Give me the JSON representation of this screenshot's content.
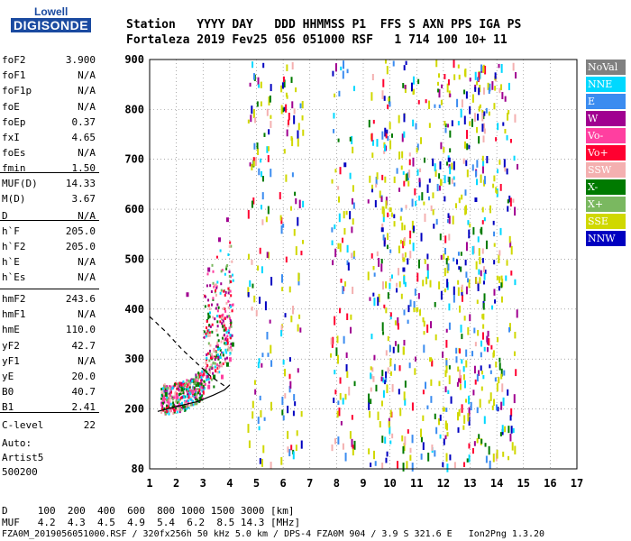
{
  "logo": {
    "line1": "Lowell",
    "line2": "DIGISONDE"
  },
  "header": {
    "row1": "Station   YYYY DAY   DDD HHMMSS P1  FFS S AXN PPS IGA PS",
    "row2": "Fortaleza 2019 Fev25 056 051000 RSF   1 714 100 10+ 11"
  },
  "params": [
    {
      "k": "foF2",
      "v": "3.900"
    },
    {
      "k": "foF1",
      "v": "N/A"
    },
    {
      "k": "foF1p",
      "v": "N/A"
    },
    {
      "k": "foE",
      "v": "N/A"
    },
    {
      "k": "foEp",
      "v": "0.37"
    },
    {
      "k": "fxI",
      "v": "4.65"
    },
    {
      "k": "foEs",
      "v": "N/A"
    },
    {
      "k": "fmin",
      "v": "1.50"
    },
    {
      "k": "MUF(D)",
      "v": "14.33"
    },
    {
      "k": "M(D)",
      "v": "3.67"
    },
    {
      "k": "D",
      "v": "N/A"
    },
    {
      "k": "h`F",
      "v": "205.0"
    },
    {
      "k": "h`F2",
      "v": "205.0"
    },
    {
      "k": "h`E",
      "v": "N/A"
    },
    {
      "k": "h`Es",
      "v": "N/A"
    },
    {
      "k": "hmF2",
      "v": "243.6"
    },
    {
      "k": "hmF1",
      "v": "N/A"
    },
    {
      "k": "hmE",
      "v": "110.0"
    },
    {
      "k": "yF2",
      "v": "42.7"
    },
    {
      "k": "yF1",
      "v": "N/A"
    },
    {
      "k": "yE",
      "v": "20.0"
    },
    {
      "k": "B0",
      "v": "40.7"
    },
    {
      "k": "B1",
      "v": "2.41"
    },
    {
      "k": "C-level",
      "v": "22"
    }
  ],
  "notes": [
    "Auto:",
    "Artist5",
    "500200"
  ],
  "legend": [
    {
      "label": "NoVal",
      "color": "#808080"
    },
    {
      "label": "NNE",
      "color": "#00d8ff"
    },
    {
      "label": "E",
      "color": "#3b8cf0"
    },
    {
      "label": "W",
      "color": "#a00090"
    },
    {
      "label": "Vo-",
      "color": "#ff3fa0"
    },
    {
      "label": "Vo+",
      "color": "#ff0030"
    },
    {
      "label": "SSW",
      "color": "#f4b0b0"
    },
    {
      "label": "X-",
      "color": "#007a00"
    },
    {
      "label": "X+",
      "color": "#7ab860"
    },
    {
      "label": "SSE",
      "color": "#d0d800"
    },
    {
      "label": "NNW",
      "color": "#0000c0"
    }
  ],
  "footer": {
    "row1": "D     100  200  400  600  800 1000 1500 3000 [km]",
    "row2": "MUF   4.2  4.3  4.5  4.9  5.4  6.2  8.5 14.3 [MHz]",
    "row3": "FZA0M_2019056051000.RSF / 320fx256h 50 kHz 5.0 km / DPS-4 FZA0M 904 / 3.9 S 321.6 E   Ion2Png 1.3.20"
  },
  "chart_data": {
    "type": "scatter",
    "title": "",
    "xlabel": "",
    "ylabel": "",
    "xlim": [
      1,
      17
    ],
    "ylim": [
      80,
      900
    ],
    "x_ticks": [
      "1",
      "2",
      "3",
      "4",
      "5",
      "6",
      "7",
      "8",
      "9",
      "10",
      "11",
      "12",
      "13",
      "14",
      "15",
      "16",
      "17"
    ],
    "y_ticks": [
      "80",
      "200",
      "300",
      "400",
      "500",
      "600",
      "700",
      "800",
      "900"
    ],
    "grid": "dotted",
    "legend_position": "right",
    "series": [
      {
        "name": "X-",
        "values": [
          [
            1.6,
            230
          ],
          [
            2.2,
            240
          ],
          [
            2.8,
            250
          ],
          [
            3.4,
            265
          ],
          [
            3.9,
            290
          ],
          [
            4.1,
            330
          ]
        ]
      },
      {
        "name": "Vo-",
        "values": [
          [
            1.5,
            220
          ],
          [
            2.0,
            225
          ],
          [
            2.6,
            235
          ],
          [
            3.2,
            245
          ],
          [
            3.7,
            265
          ],
          [
            4.0,
            300
          ]
        ]
      },
      {
        "name": "W",
        "values": [
          [
            2.4,
            430
          ],
          [
            3.2,
            480
          ],
          [
            3.6,
            540
          ],
          [
            3.9,
            580
          ]
        ]
      },
      {
        "name": "SSE",
        "values": [
          [
            10.0,
            600
          ],
          [
            10.5,
            500
          ],
          [
            11.0,
            400
          ],
          [
            11.5,
            300
          ],
          [
            12.0,
            200
          ]
        ]
      },
      {
        "name": "NNW",
        "values": [
          [
            8.3,
            690
          ],
          [
            9.7,
            560
          ],
          [
            10.5,
            480
          ],
          [
            12.2,
            700
          ],
          [
            13.2,
            620
          ]
        ]
      }
    ],
    "traces": [
      {
        "name": "profile",
        "style": "solid",
        "points": [
          [
            1.3,
            195
          ],
          [
            2.0,
            205
          ],
          [
            2.8,
            215
          ],
          [
            3.4,
            228
          ],
          [
            3.8,
            238
          ],
          [
            4.0,
            248
          ]
        ]
      },
      {
        "name": "profile-extrapolated",
        "style": "dashed",
        "points": [
          [
            1.0,
            385
          ],
          [
            1.6,
            355
          ],
          [
            2.2,
            320
          ],
          [
            2.8,
            290
          ],
          [
            3.3,
            265
          ],
          [
            3.7,
            250
          ],
          [
            3.9,
            243
          ]
        ]
      }
    ]
  }
}
